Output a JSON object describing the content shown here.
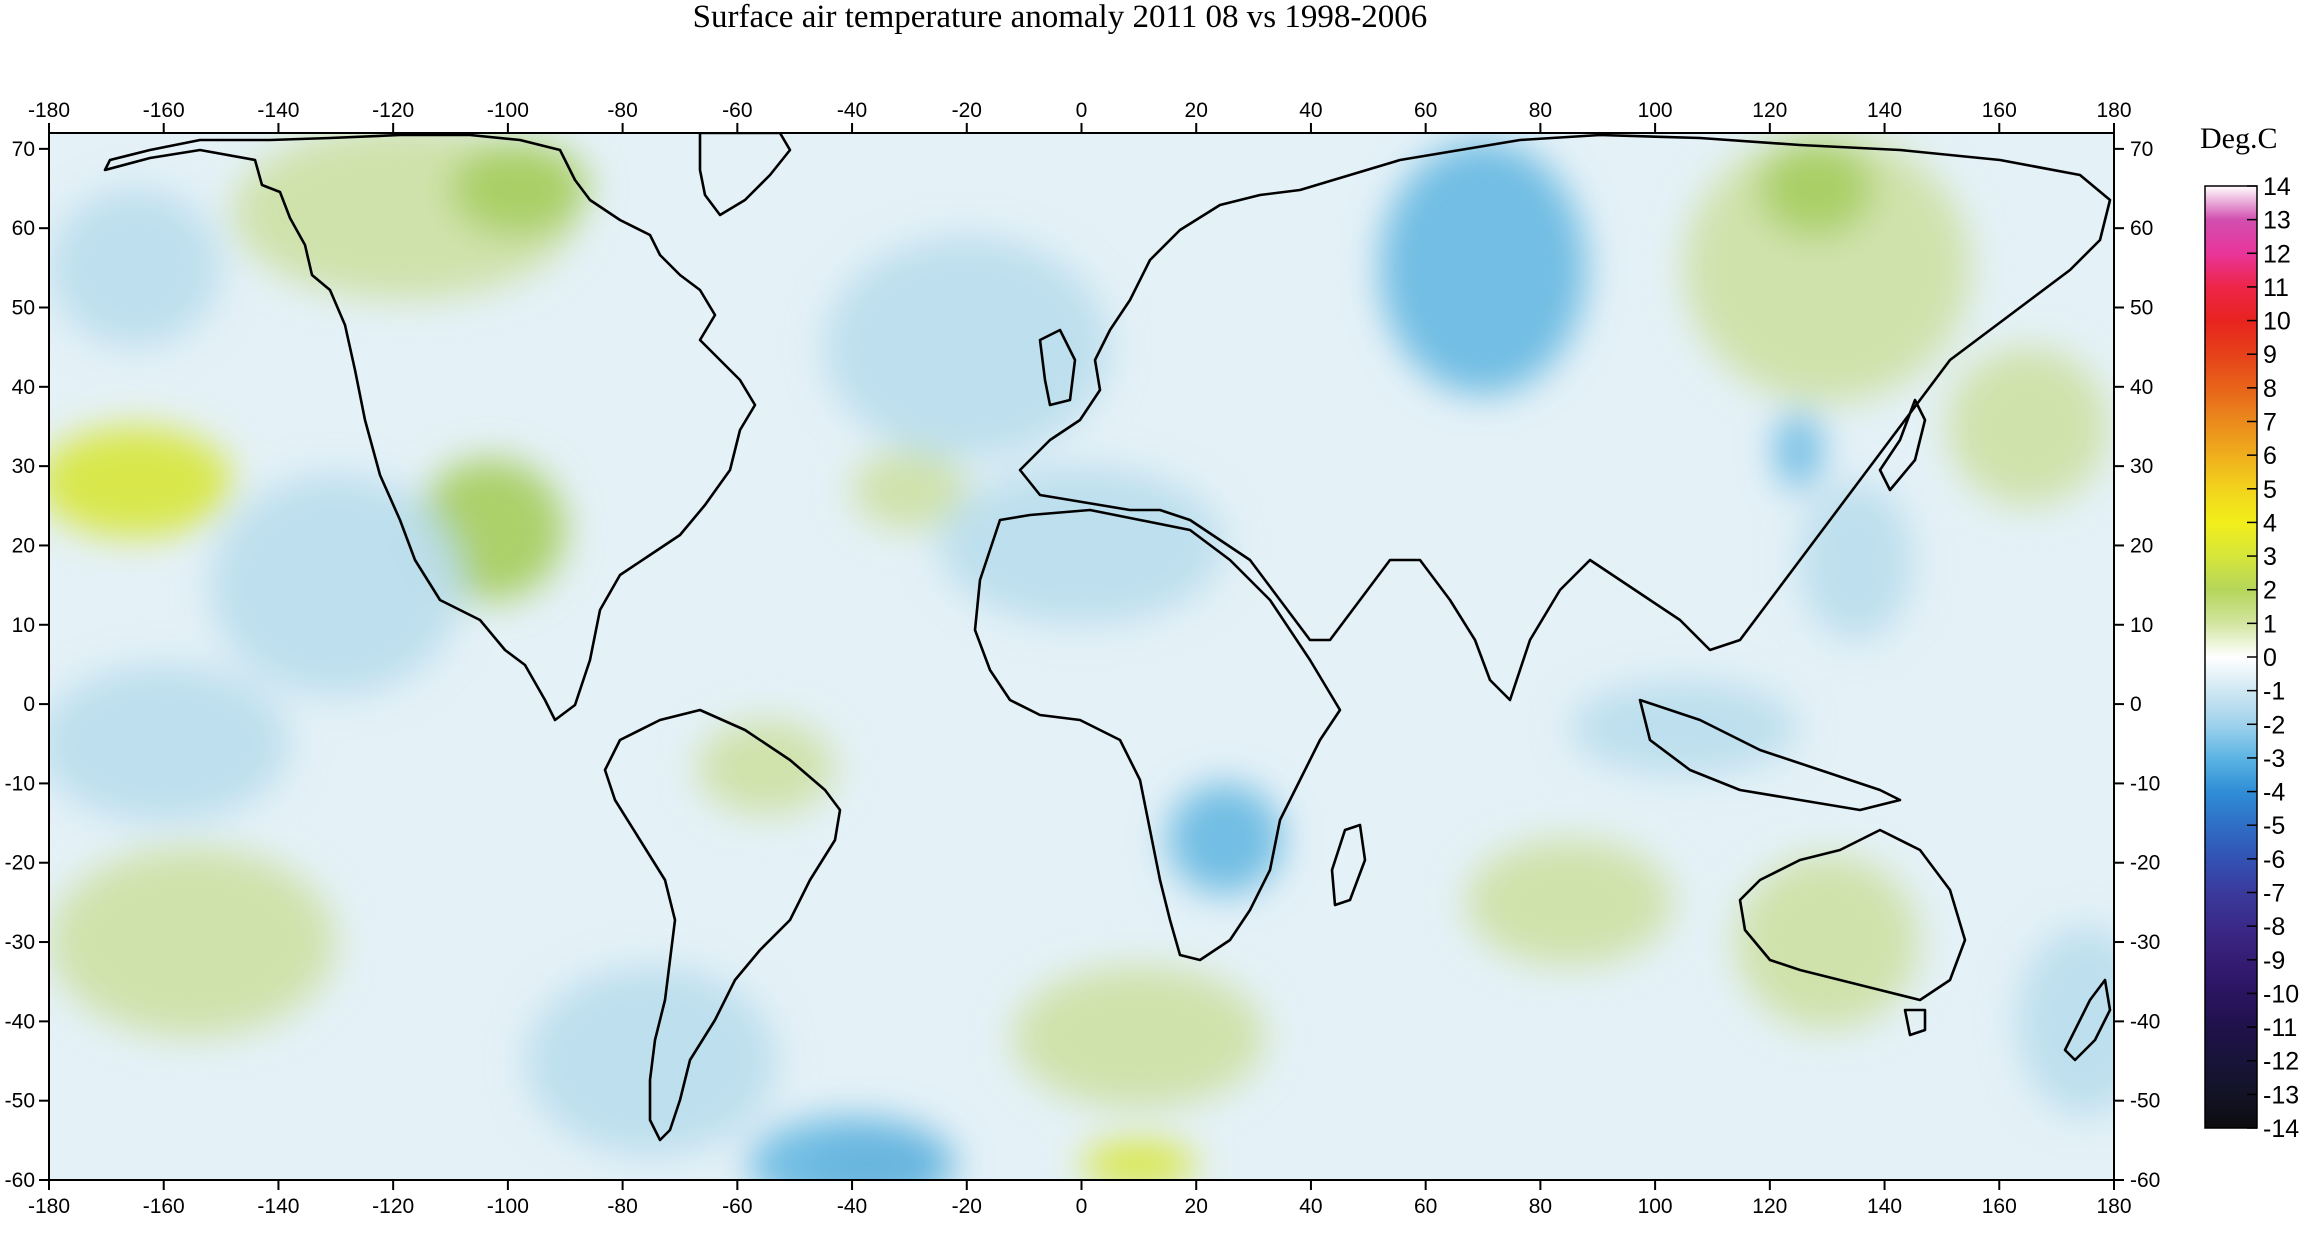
{
  "title": "Surface air temperature anomaly 2011 08 vs 1998-2006",
  "legend": {
    "title": "Deg.C",
    "levels": [
      "14",
      "13",
      "12",
      "11",
      "10",
      "9",
      "8",
      "7",
      "6",
      "5",
      "4",
      "3",
      "2",
      "1",
      "0",
      "-1",
      "-2",
      "-3",
      "-4",
      "-5",
      "-6",
      "-7",
      "-8",
      "-9",
      "-10",
      "-11",
      "-12",
      "-13",
      "-14"
    ],
    "colors": [
      "#ffffff",
      "#d24fb0",
      "#e8359a",
      "#ee2548",
      "#e8231f",
      "#e6411a",
      "#e8631a",
      "#eb8a1d",
      "#efae1c",
      "#f2d31c",
      "#f2ee1a",
      "#d6e63a",
      "#b5d65a",
      "#d2e5a0",
      "#ffffff",
      "#cfe7f2",
      "#9fd2ec",
      "#5cb4e3",
      "#2f8ed6",
      "#2f6ec6",
      "#3252b4",
      "#3a3a9c",
      "#3a2a88",
      "#351c74",
      "#2a1460",
      "#1f124a",
      "#18133a",
      "#131326",
      "#0c0c0f"
    ]
  },
  "axes": {
    "x_ticks": [
      "-180",
      "-160",
      "-140",
      "-120",
      "-100",
      "-80",
      "-60",
      "-40",
      "-20",
      "0",
      "20",
      "40",
      "60",
      "80",
      "100",
      "120",
      "140",
      "160",
      "180"
    ],
    "y_ticks": [
      "70",
      "60",
      "50",
      "40",
      "30",
      "20",
      "10",
      "0",
      "-10",
      "-20",
      "-30",
      "-40",
      "-50",
      "-60"
    ],
    "lon_range": [
      -180,
      180
    ],
    "lat_range": [
      -60,
      72
    ]
  },
  "anomaly_patches": [
    {
      "lon": -165,
      "lat": 28,
      "rlon": 17,
      "rlat": 7,
      "value": 3
    },
    {
      "lon": -103,
      "lat": 22,
      "rlon": 13,
      "rlat": 9,
      "value": 2
    },
    {
      "lon": -118,
      "lat": 62,
      "rlon": 30,
      "rlat": 11,
      "value": 1
    },
    {
      "lon": -98,
      "lat": 65,
      "rlon": 12,
      "rlat": 6,
      "value": 2
    },
    {
      "lon": 130,
      "lat": 55,
      "rlon": 25,
      "rlat": 17,
      "value": 1
    },
    {
      "lon": 128,
      "lat": 65,
      "rlon": 10,
      "rlat": 6,
      "value": 2
    },
    {
      "lon": 130,
      "lat": -30,
      "rlon": 16,
      "rlat": 11,
      "value": 1
    },
    {
      "lon": 10,
      "lat": -42,
      "rlon": 22,
      "rlat": 9,
      "value": 1
    },
    {
      "lon": 10,
      "lat": -58,
      "rlon": 10,
      "rlat": 3,
      "value": 3
    },
    {
      "lon": 85,
      "lat": -25,
      "rlon": 18,
      "rlat": 8,
      "value": 1
    },
    {
      "lon": -155,
      "lat": -30,
      "rlon": 25,
      "rlat": 12,
      "value": 1
    },
    {
      "lon": -55,
      "lat": -8,
      "rlon": 12,
      "rlat": 6,
      "value": 1
    },
    {
      "lon": -30,
      "lat": 27,
      "rlon": 10,
      "rlat": 5,
      "value": 1
    },
    {
      "lon": 165,
      "lat": 35,
      "rlon": 14,
      "rlat": 10,
      "value": 1
    },
    {
      "lon": 70,
      "lat": 55,
      "rlon": 18,
      "rlat": 16,
      "value": -2
    },
    {
      "lon": -130,
      "lat": 15,
      "rlon": 22,
      "rlat": 14,
      "value": -1
    },
    {
      "lon": -160,
      "lat": -5,
      "rlon": 22,
      "rlat": 10,
      "value": -1
    },
    {
      "lon": -75,
      "lat": -45,
      "rlon": 22,
      "rlat": 12,
      "value": -1
    },
    {
      "lon": -35,
      "lat": -58,
      "rlon": 12,
      "rlat": 4,
      "value": -4
    },
    {
      "lon": -40,
      "lat": -58,
      "rlon": 18,
      "rlat": 6,
      "value": -2
    },
    {
      "lon": 25,
      "lat": -17,
      "rlon": 10,
      "rlat": 7,
      "value": -2
    },
    {
      "lon": 135,
      "lat": 18,
      "rlon": 10,
      "rlat": 10,
      "value": -1
    },
    {
      "lon": 125,
      "lat": 32,
      "rlon": 4,
      "rlat": 5,
      "value": -2
    },
    {
      "lon": -20,
      "lat": 45,
      "rlon": 25,
      "rlat": 14,
      "value": -1
    },
    {
      "lon": 0,
      "lat": 20,
      "rlon": 25,
      "rlat": 10,
      "value": -1
    },
    {
      "lon": 175,
      "lat": -40,
      "rlon": 12,
      "rlat": 12,
      "value": -1
    },
    {
      "lon": -165,
      "lat": 55,
      "rlon": 15,
      "rlat": 10,
      "value": -1
    },
    {
      "lon": 105,
      "lat": -3,
      "rlon": 20,
      "rlat": 6,
      "value": -1
    }
  ]
}
